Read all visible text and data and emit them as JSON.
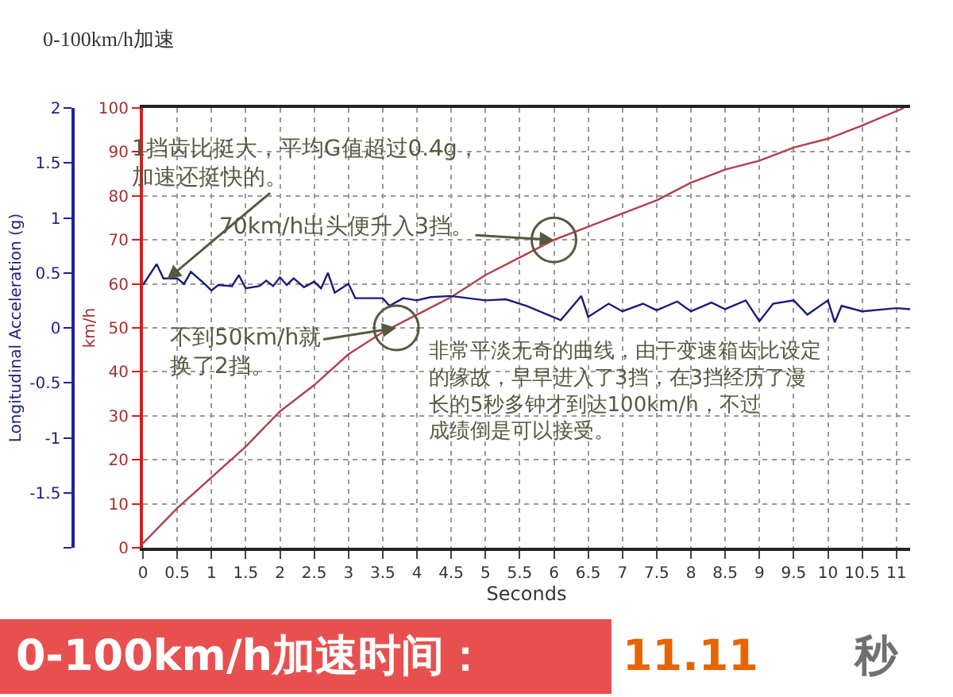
{
  "chart_data": {
    "type": "line",
    "title": "0-100km/h加速",
    "xlabel": "Seconds",
    "ylabel": "km/h",
    "y2label": "Longitudinal Acceleration (g)",
    "xlim": [
      0,
      11.2
    ],
    "xticks": [
      0,
      0.5,
      1,
      1.5,
      2,
      2.5,
      3,
      3.5,
      4,
      4.5,
      5,
      5.5,
      6,
      6.5,
      7,
      7.5,
      8,
      8.5,
      9,
      9.5,
      10,
      10.5,
      11
    ],
    "ylim": [
      0,
      100
    ],
    "yticks": [
      0,
      10,
      20,
      30,
      40,
      50,
      60,
      70,
      80,
      90,
      100
    ],
    "y2lim": [
      -2,
      2
    ],
    "y2ticks": [
      {
        "value": -2,
        "label": null
      },
      -1.5,
      -1,
      -0.5,
      0,
      0.5,
      1,
      1.5,
      2
    ],
    "grid": true,
    "marker": "none",
    "line_style": "solid",
    "series": [
      {
        "color": "#b0404c",
        "x": [
          0,
          0.25,
          0.5,
          1,
          1.5,
          2,
          2.5,
          3,
          3.5,
          4,
          4.5,
          5,
          5.5,
          6,
          6.5,
          7,
          7.5,
          8,
          8.5,
          9,
          9.5,
          10,
          10.5,
          11.11
        ],
        "values": [
          1,
          5,
          9,
          16,
          23,
          31,
          37,
          44,
          49,
          53,
          57,
          62,
          66,
          70,
          73,
          76,
          79,
          83,
          86,
          88,
          91,
          93,
          96,
          100
        ]
      },
      {
        "color": "#1c1c78",
        "axis": "y2",
        "x": [
          0,
          0.2,
          0.3,
          0.5,
          0.6,
          0.7,
          0.9,
          1.0,
          1.1,
          1.3,
          1.4,
          1.5,
          1.7,
          1.8,
          1.9,
          2.0,
          2.1,
          2.2,
          2.35,
          2.5,
          2.6,
          2.7,
          2.8,
          3.0,
          3.1,
          3.5,
          3.6,
          3.8,
          4.0,
          4.2,
          4.5,
          5.0,
          5.3,
          5.6,
          6.1,
          6.4,
          6.5,
          6.8,
          7.0,
          7.3,
          7.5,
          7.8,
          8.0,
          8.3,
          8.5,
          8.8,
          9.0,
          9.2,
          9.5,
          9.7,
          10.0,
          10.1,
          10.2,
          10.5,
          11.0,
          11.2
        ],
        "values": [
          0.39,
          0.58,
          0.45,
          0.45,
          0.4,
          0.51,
          0.4,
          0.34,
          0.39,
          0.38,
          0.48,
          0.36,
          0.38,
          0.43,
          0.38,
          0.46,
          0.39,
          0.45,
          0.37,
          0.42,
          0.36,
          0.5,
          0.32,
          0.4,
          0.27,
          0.27,
          0.2,
          0.27,
          0.25,
          0.28,
          0.29,
          0.25,
          0.26,
          0.2,
          0.07,
          0.29,
          0.1,
          0.22,
          0.15,
          0.22,
          0.16,
          0.24,
          0.15,
          0.23,
          0.17,
          0.25,
          0.06,
          0.22,
          0.25,
          0.12,
          0.25,
          0.05,
          0.2,
          0.15,
          0.18,
          0.17
        ]
      }
    ],
    "annotations": [
      {
        "text": "1挡齿比挺大，平均G值超过0.4g，加速还挺快的。",
        "x": 0.35,
        "y": 61
      },
      {
        "text": "70km/h出头便升入3挡。",
        "x": 6,
        "y": 70
      },
      {
        "text": "不到50km/h就换了2挡。",
        "x": 3.7,
        "y": 50
      },
      "非常平淡无奇的曲线，由于变速箱齿比设定的缘故，早早进入了3挡，在3挡经历了漫长的5秒多钟才到达100km/h，不过成绩倒是可以接受。",
      "0-100km/h加速时间：",
      "11.11",
      "秒"
    ]
  }
}
